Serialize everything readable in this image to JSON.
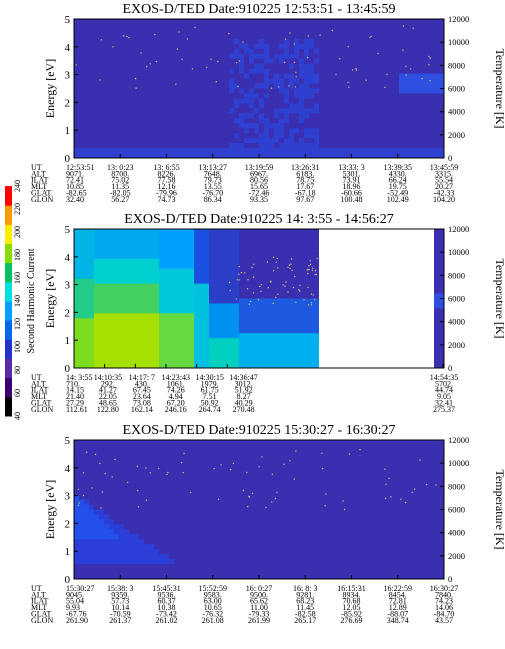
{
  "chart_data": [
    {
      "type": "heatmap",
      "title": "EXOS-D/TED   Date:910225   12:53:51 - 13:45:59",
      "ylabel": "Energy [eV]",
      "y2label": "Temperature [K]",
      "ylim": [
        0,
        5
      ],
      "y2lim": [
        0,
        12000
      ],
      "yticks": [
        "0",
        "1",
        "2",
        "3",
        "4",
        "5"
      ],
      "y2ticks": [
        "0",
        "2000",
        "4000",
        "6000",
        "8000",
        "10000",
        "12000"
      ],
      "data_coverage": [
        0,
        1
      ],
      "rows": [
        {
          "name": "UT",
          "values": [
            "12:53:51",
            "13: 0:23",
            "13: 6:55",
            "13:13:27",
            "13:19:59",
            "13:26:31",
            "13:33: 3",
            "13:39:35",
            "13:45:59"
          ]
        },
        {
          "name": "ALT",
          "values": [
            "9071.",
            "8700.",
            "8226.",
            "7648.",
            "6967.",
            "6183.",
            "5301.",
            "4330.",
            "3315."
          ]
        },
        {
          "name": "ILAT",
          "values": [
            "72.41",
            "75.02",
            "77.58",
            "79.73",
            "80.56",
            "78.75",
            "73.91",
            "66.24",
            "55.54"
          ]
        },
        {
          "name": "MLT",
          "values": [
            "10.85",
            "11.35",
            "12.16",
            "13.55",
            "15.65",
            "17.67",
            "18.96",
            "19.75",
            "20.27"
          ]
        },
        {
          "name": "GLAT",
          "values": [
            "-82.65",
            "-82.05",
            "-79.96",
            "-76.70",
            "-72.46",
            "-67.18",
            "-60.66",
            "-52.49",
            "-42.33"
          ]
        },
        {
          "name": "GLON",
          "values": [
            "32.40",
            "56.27",
            "74.73",
            "86.34",
            "93.35",
            "97.67",
            "100.48",
            "102.49",
            "104.20"
          ]
        }
      ]
    },
    {
      "type": "heatmap",
      "title": "EXOS-D/TED   Date:910225   14: 3:55 - 14:56:27",
      "ylabel": "Energy [eV]",
      "y2label": "Temperature [K]",
      "ylim": [
        0,
        5
      ],
      "y2lim": [
        0,
        12000
      ],
      "yticks": [
        "0",
        "1",
        "2",
        "3",
        "4",
        "5"
      ],
      "y2ticks": [
        "0",
        "2000",
        "4000",
        "6000",
        "8000",
        "10000",
        "12000"
      ],
      "data_coverage": [
        0,
        0.66
      ],
      "rows": [
        {
          "name": "UT",
          "values": [
            "14: 3:55",
            "14:10:35",
            "14:17: 7",
            "14:23:43",
            "14:30:15",
            "14:36:47",
            "",
            "14:54:35"
          ]
        },
        {
          "name": "ALT",
          "values": [
            "710.",
            "292.",
            "430.",
            "1061.",
            "1979.",
            "3012.",
            "",
            "5702."
          ]
        },
        {
          "name": "ILAT",
          "values": [
            "14.15",
            "41.27",
            "67.45",
            "74.26",
            "61.75",
            "51.92",
            "",
            "44.74"
          ]
        },
        {
          "name": "MLT",
          "values": [
            "21.40",
            "22.05",
            "23.64",
            "4.94",
            "7.51",
            "8.27",
            "",
            "9.05"
          ]
        },
        {
          "name": "GLAT",
          "values": [
            "27.29",
            "48.65",
            "73.08",
            "67.20",
            "50.92",
            "40.29",
            "",
            "32.41"
          ]
        },
        {
          "name": "GLON",
          "values": [
            "112.61",
            "122.80",
            "162.14",
            "246.16",
            "264.74",
            "270.48",
            "",
            "275.37"
          ]
        }
      ]
    },
    {
      "type": "heatmap",
      "title": "EXOS-D/TED   Date:910225   15:30:27 - 16:30:27",
      "ylabel": "Energy [eV]",
      "y2label": "Temperature [K]",
      "ylim": [
        0,
        5
      ],
      "y2lim": [
        0,
        12000
      ],
      "yticks": [
        "0",
        "1",
        "2",
        "3",
        "4",
        "5"
      ],
      "y2ticks": [
        "0",
        "2000",
        "4000",
        "6000",
        "8000",
        "10000",
        "12000"
      ],
      "data_coverage": [
        0,
        1
      ],
      "rows": [
        {
          "name": "UT",
          "values": [
            "15:30:27",
            "15:38: 3",
            "15:45:31",
            "15:52:59",
            "16: 0:27",
            "16: 8: 3",
            "16:15:31",
            "16:22:59",
            "16:30:27"
          ]
        },
        {
          "name": "ALT",
          "values": [
            "9045.",
            "9359.",
            "9536.",
            "9583.",
            "9500.",
            "9281.",
            "8934.",
            "8454.",
            "7840."
          ]
        },
        {
          "name": "ILAT",
          "values": [
            "55.04",
            "57.73",
            "60.37",
            "63.00",
            "65.62",
            "68.23",
            "70.68",
            "72.81",
            "74.23"
          ]
        },
        {
          "name": "MLT",
          "values": [
            "9.93",
            "10.14",
            "10.38",
            "10.65",
            "11.00",
            "11.45",
            "12.05",
            "12.89",
            "14.06"
          ]
        },
        {
          "name": "GLAT",
          "values": [
            "-67.76",
            "-70.59",
            "-73.42",
            "-76.32",
            "-79.33",
            "-82.58",
            "-85.92",
            "-88.07",
            "-84.70"
          ]
        },
        {
          "name": "GLON",
          "values": [
            "261.90",
            "261.37",
            "261.02",
            "261.08",
            "261.99",
            "265.17",
            "276.69",
            "348.74",
            "43.57"
          ]
        }
      ]
    }
  ],
  "colorbar": {
    "label": "Second Harmonic Current",
    "ticks": [
      "40",
      "60",
      "80",
      "100",
      "120",
      "140",
      "160",
      "180",
      "200",
      "220",
      "240"
    ],
    "colors": [
      "#000000",
      "#3b0070",
      "#5a2aa8",
      "#2233cc",
      "#0066ee",
      "#00a0ff",
      "#00e0e0",
      "#00c060",
      "#88dd00",
      "#ffee00",
      "#ff9900",
      "#ff0000"
    ]
  }
}
